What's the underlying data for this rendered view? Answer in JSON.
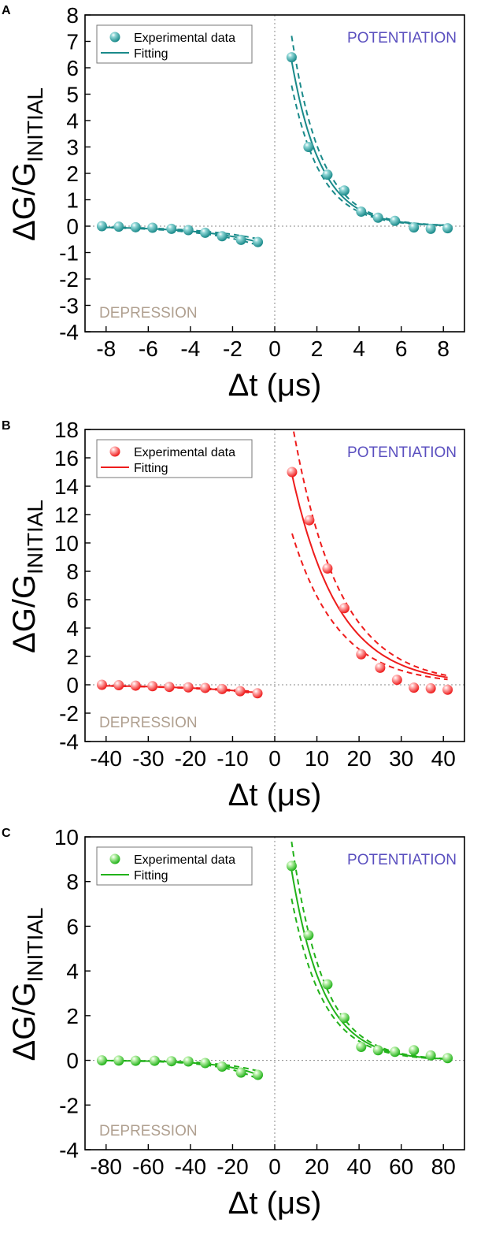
{
  "chart_data": [
    {
      "panel": "A",
      "type": "scatter",
      "color": "#1a8a8a",
      "highlight": "#8fd6d6",
      "xlabel": "Δt (μs)",
      "ylabel": "ΔG/G",
      "ylabel_sub": "INITIAL",
      "xlim": [
        -9,
        9
      ],
      "ylim": [
        -4,
        8
      ],
      "xticks": [
        -8,
        -6,
        -4,
        -2,
        0,
        2,
        4,
        6,
        8
      ],
      "yticks": [
        -4,
        -3,
        -2,
        -1,
        0,
        1,
        2,
        3,
        4,
        5,
        6,
        7,
        8
      ],
      "xtick_labels": [
        "-8",
        "-6",
        "-4",
        "-2",
        "0",
        "2",
        "4",
        "6",
        "8"
      ],
      "ytick_labels": [
        "-4",
        "-3",
        "-2",
        "-1",
        "0",
        "1",
        "2",
        "3",
        "4",
        "5",
        "6",
        "7",
        "8"
      ],
      "legend": {
        "points": "Experimental data",
        "fit": "Fitting"
      },
      "annotations": {
        "potentiation": "POTENTIATION",
        "depression": "DEPRESSION"
      },
      "series": [
        {
          "name": "Experimental data",
          "x": [
            -8.2,
            -7.4,
            -6.6,
            -5.8,
            -4.9,
            -4.1,
            -3.3,
            -2.5,
            -1.6,
            -0.8,
            0.8,
            1.6,
            2.5,
            3.3,
            4.1,
            4.9,
            5.7,
            6.6,
            7.4,
            8.2
          ],
          "y": [
            0.0,
            -0.02,
            -0.04,
            -0.06,
            -0.1,
            -0.15,
            -0.25,
            -0.38,
            -0.52,
            -0.6,
            6.4,
            3.0,
            1.95,
            1.35,
            0.55,
            0.32,
            0.2,
            -0.05,
            -0.1,
            -0.08
          ]
        }
      ],
      "fits": {
        "positive": {
          "x_range": [
            0.8,
            8.2
          ],
          "amplitude": 11.1,
          "tau": 1.4,
          "lower_factor": 0.85,
          "upper_factor": 1.15
        },
        "negative": {
          "x_range": [
            -8.2,
            -0.8
          ],
          "amplitude": -0.8,
          "tau": 2.8,
          "lower_factor": 1.2,
          "upper_factor": 0.8
        }
      }
    },
    {
      "panel": "B",
      "type": "scatter",
      "color": "#ee1c1c",
      "highlight": "#ffb3b3",
      "xlabel": "Δt (μs)",
      "ylabel": "ΔG/G",
      "ylabel_sub": "INITIAL",
      "xlim": [
        -45,
        45
      ],
      "ylim": [
        -4,
        18
      ],
      "xticks": [
        -40,
        -30,
        -20,
        -10,
        0,
        10,
        20,
        30,
        40
      ],
      "yticks": [
        -4,
        -2,
        0,
        2,
        4,
        6,
        8,
        10,
        12,
        14,
        16,
        18
      ],
      "xtick_labels": [
        "-40",
        "-30",
        "-20",
        "-10",
        "0",
        "10",
        "20",
        "30",
        "40"
      ],
      "ytick_labels": [
        "-4",
        "-2",
        "0",
        "2",
        "4",
        "6",
        "8",
        "10",
        "12",
        "14",
        "16",
        "18"
      ],
      "legend": {
        "points": "Experimental data",
        "fit": "Fitting"
      },
      "annotations": {
        "potentiation": "POTENTIATION",
        "depression": "DEPRESSION"
      },
      "series": [
        {
          "name": "Experimental data",
          "x": [
            -41,
            -37,
            -33,
            -29,
            -25,
            -20.5,
            -16.5,
            -12.5,
            -8.2,
            -4.1,
            4.1,
            8.2,
            12.5,
            16.5,
            20.5,
            25,
            29,
            33,
            37,
            41
          ],
          "y": [
            0.0,
            -0.03,
            -0.06,
            -0.1,
            -0.15,
            -0.18,
            -0.22,
            -0.3,
            -0.45,
            -0.6,
            15.0,
            11.6,
            8.2,
            5.4,
            2.15,
            1.2,
            0.35,
            -0.2,
            -0.25,
            -0.35
          ]
        }
      ],
      "fits": {
        "positive": {
          "x_range": [
            4.1,
            41
          ],
          "amplitude": 21.5,
          "tau": 11.0,
          "lower_factor": 0.72,
          "upper_factor": 1.25
        },
        "negative": {
          "x_range": [
            -41,
            -4.1
          ],
          "amplitude": -0.7,
          "tau": 18.0,
          "lower_factor": 1.1,
          "upper_factor": 0.9
        }
      }
    },
    {
      "panel": "C",
      "type": "scatter",
      "color": "#22b21a",
      "highlight": "#b8f0a8",
      "xlabel": "Δt (μs)",
      "ylabel": "ΔG/G",
      "ylabel_sub": "INITIAL",
      "xlim": [
        -90,
        90
      ],
      "ylim": [
        -4,
        10
      ],
      "xticks": [
        -80,
        -60,
        -40,
        -20,
        0,
        20,
        40,
        60,
        80
      ],
      "yticks": [
        -4,
        -2,
        0,
        2,
        4,
        6,
        8,
        10
      ],
      "xtick_labels": [
        "-80",
        "-60",
        "-40",
        "-20",
        "0",
        "20",
        "40",
        "60",
        "80"
      ],
      "ytick_labels": [
        "-4",
        "-2",
        "0",
        "2",
        "4",
        "6",
        "8",
        "10"
      ],
      "legend": {
        "points": "Experimental data",
        "fit": "Fitting"
      },
      "annotations": {
        "potentiation": "POTENTIATION",
        "depression": "DEPRESSION"
      },
      "series": [
        {
          "name": "Experimental data",
          "x": [
            -82,
            -74,
            -66,
            -57,
            -49,
            -41,
            -33,
            -25,
            -16,
            -8,
            8,
            16,
            25,
            33,
            41,
            49,
            57,
            66,
            74,
            82
          ],
          "y": [
            0.0,
            -0.01,
            -0.02,
            -0.02,
            -0.04,
            -0.05,
            -0.12,
            -0.28,
            -0.55,
            -0.65,
            8.7,
            5.6,
            3.4,
            1.9,
            0.6,
            0.45,
            0.38,
            0.45,
            0.22,
            0.1
          ]
        }
      ],
      "fits": {
        "positive": {
          "x_range": [
            8,
            82
          ],
          "amplitude": 14.5,
          "tau": 15.0,
          "lower_factor": 0.85,
          "upper_factor": 1.15
        },
        "negative": {
          "x_range": [
            -82,
            -8
          ],
          "amplitude": -1.0,
          "tau": 18.0,
          "lower_factor": 1.3,
          "upper_factor": 0.75
        }
      }
    }
  ]
}
